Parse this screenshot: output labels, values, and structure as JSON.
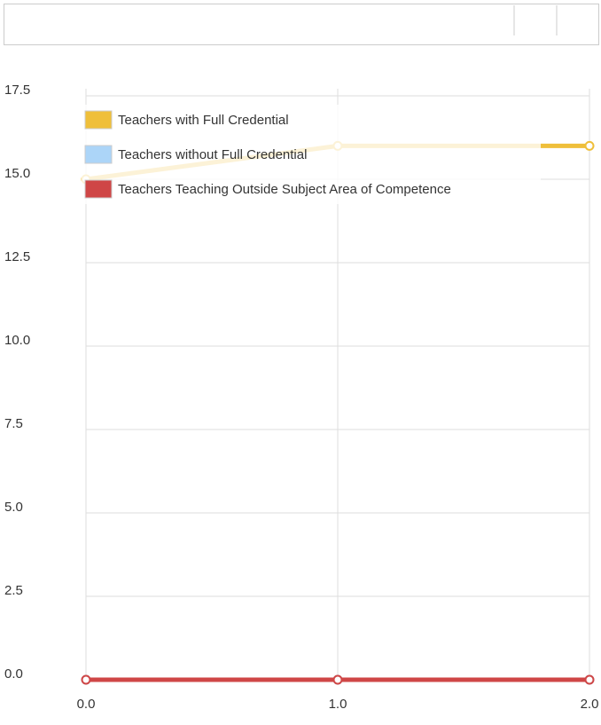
{
  "chart_data": {
    "type": "line",
    "x": [
      0,
      1,
      2
    ],
    "xlim": [
      0,
      2
    ],
    "xticks": [
      {
        "value": 0,
        "label": "0.0"
      },
      {
        "value": 1,
        "label": "1.0"
      },
      {
        "value": 2,
        "label": "2.0"
      }
    ],
    "ylim": [
      0,
      17.5
    ],
    "yticks": [
      {
        "value": 0,
        "label": "0.0"
      },
      2.5,
      {
        "value": 5,
        "label": "5.0"
      },
      7.5,
      {
        "value": 10,
        "label": "10.0"
      },
      12.5,
      {
        "value": 15,
        "label": "15.0"
      },
      17.5
    ],
    "grid": true,
    "legend": "upper left",
    "series": [
      {
        "name": "Teachers with Full Credential",
        "color": "#efbf3a",
        "values": [
          15,
          16,
          16
        ]
      },
      {
        "name": "Teachers without Full Credential",
        "color": "#acd5f8",
        "values": [
          0,
          0,
          0
        ]
      },
      {
        "name": "Teachers Teaching Outside Subject Area of Competence",
        "color": "#cf4646",
        "values": [
          0,
          0,
          0
        ]
      }
    ]
  }
}
